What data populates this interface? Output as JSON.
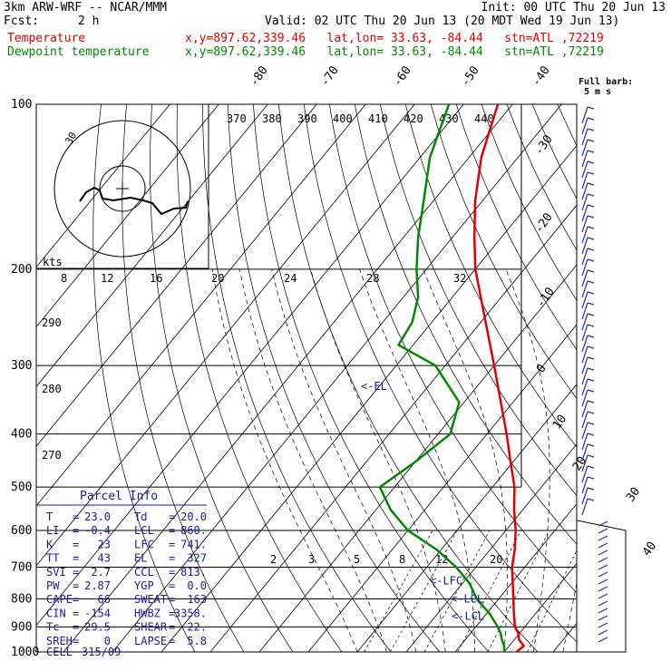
{
  "header": {
    "model": "3km ARW-WRF -- NCAR/MMM",
    "init": "Init: 00 UTC Thu 20 Jun 13",
    "fcst_label": "Fcst:",
    "fcst_value": "2 h",
    "valid": "Valid: 02 UTC Thu 20 Jun 13 (20 MDT Wed 19 Jun 13)",
    "temp_label": "Temperature",
    "temp_loc": "x,y=897.62,339.46   lat,lon= 33.63, -84.44   stn=ATL ,72219",
    "dew_label": "Dewpoint temperature",
    "dew_loc": "x,y=897.62,339.46   lat,lon= 33.63, -84.44   stn=ATL ,72219"
  },
  "colors": {
    "temperature": "#e00000",
    "dewpoint": "#008800",
    "barbs": "#2a2aa8",
    "info": "#1a1aa0"
  },
  "chart_data": {
    "type": "line",
    "y_axis": "pressure (hPa, log)",
    "ylim": [
      1000,
      100
    ],
    "pressure_ticks": [
      "100",
      "200",
      "300",
      "400",
      "500",
      "600",
      "700",
      "800",
      "900",
      "1000"
    ],
    "isotherm_labels": [
      "-80",
      "-70",
      "-60",
      "-50",
      "-40",
      "-30",
      "-20",
      "-10",
      "0",
      "10",
      "20",
      "30",
      "40"
    ],
    "theta_labels": [
      "370",
      "380",
      "390",
      "400",
      "410",
      "420",
      "430",
      "440"
    ],
    "lower_theta_labels": [
      "290",
      "280",
      "270"
    ],
    "mixing_ratio_labels": [
      "2",
      "3",
      "5",
      "8",
      "12",
      "20"
    ],
    "series": [
      {
        "name": "Temperature",
        "points": [
          [
            1000,
            22.5
          ],
          [
            975,
            23.0
          ],
          [
            950,
            21.0
          ],
          [
            925,
            19.8
          ],
          [
            900,
            18.0
          ],
          [
            850,
            15.5
          ],
          [
            800,
            13.0
          ],
          [
            750,
            10.3
          ],
          [
            700,
            7.4
          ],
          [
            650,
            5.0
          ],
          [
            600,
            2.0
          ],
          [
            550,
            -1.8
          ],
          [
            500,
            -5.5
          ],
          [
            450,
            -10.5
          ],
          [
            400,
            -16.0
          ],
          [
            350,
            -22.5
          ],
          [
            300,
            -30.0
          ],
          [
            250,
            -39.0
          ],
          [
            200,
            -50.0
          ],
          [
            175,
            -55.5
          ],
          [
            150,
            -61.5
          ],
          [
            125,
            -67.5
          ],
          [
            100,
            -73.0
          ]
        ]
      },
      {
        "name": "Dewpoint temperature",
        "points": [
          [
            1000,
            20.0
          ],
          [
            975,
            19.0
          ],
          [
            950,
            17.5
          ],
          [
            925,
            16.2
          ],
          [
            900,
            14.5
          ],
          [
            850,
            10.5
          ],
          [
            800,
            5.5
          ],
          [
            750,
            1.5
          ],
          [
            700,
            -4.0
          ],
          [
            650,
            -11.0
          ],
          [
            600,
            -20.0
          ],
          [
            550,
            -27.0
          ],
          [
            500,
            -33.0
          ],
          [
            450,
            -30.0
          ],
          [
            400,
            -27.5
          ],
          [
            350,
            -31.0
          ],
          [
            300,
            -42.0
          ],
          [
            275,
            -53.0
          ],
          [
            250,
            -54.0
          ],
          [
            225,
            -57.0
          ],
          [
            200,
            -62.0
          ],
          [
            175,
            -67.0
          ],
          [
            150,
            -72.0
          ],
          [
            125,
            -78.0
          ],
          [
            100,
            -83.0
          ]
        ]
      }
    ],
    "level_markers": [
      {
        "label": "<-EL",
        "p": 327
      },
      {
        "label": "<-LFC",
        "p": 741
      },
      {
        "label": "<-LCL",
        "p": 800
      },
      {
        "label": "<-LCL",
        "p": 860
      }
    ],
    "wind_barb_header": [
      "Full barb:",
      "5 m s"
    ],
    "hodograph": {
      "unit_label": "kts",
      "ring_label": "30",
      "speed_labels": [
        "8",
        "12",
        "16",
        "20",
        "24",
        "28",
        "32"
      ]
    }
  },
  "parcel_info": {
    "title": "Parcel Info",
    "rows": [
      [
        "T",
        "23.0",
        "Td",
        "20.0"
      ],
      [
        "LI",
        "-0.4",
        "LCL",
        "860."
      ],
      [
        "K",
        "23",
        "LFC",
        "741."
      ],
      [
        "TT",
        "43",
        "EL",
        "327"
      ],
      [
        "SVI",
        "2.7",
        "CCL",
        "813."
      ],
      [
        "PW",
        "2.87",
        "YGP",
        "0.0"
      ],
      [
        "CAPE",
        "66",
        "SWEAT",
        "163"
      ],
      [
        "CIN",
        "-154",
        "HWBZ",
        "3358."
      ],
      [
        "Tc",
        "29.5",
        "SHEAR",
        "22."
      ],
      [
        "SREH",
        "0",
        "LAPSE",
        "5.8"
      ]
    ],
    "cell_label": "CELL",
    "cell_value": "315/09"
  }
}
